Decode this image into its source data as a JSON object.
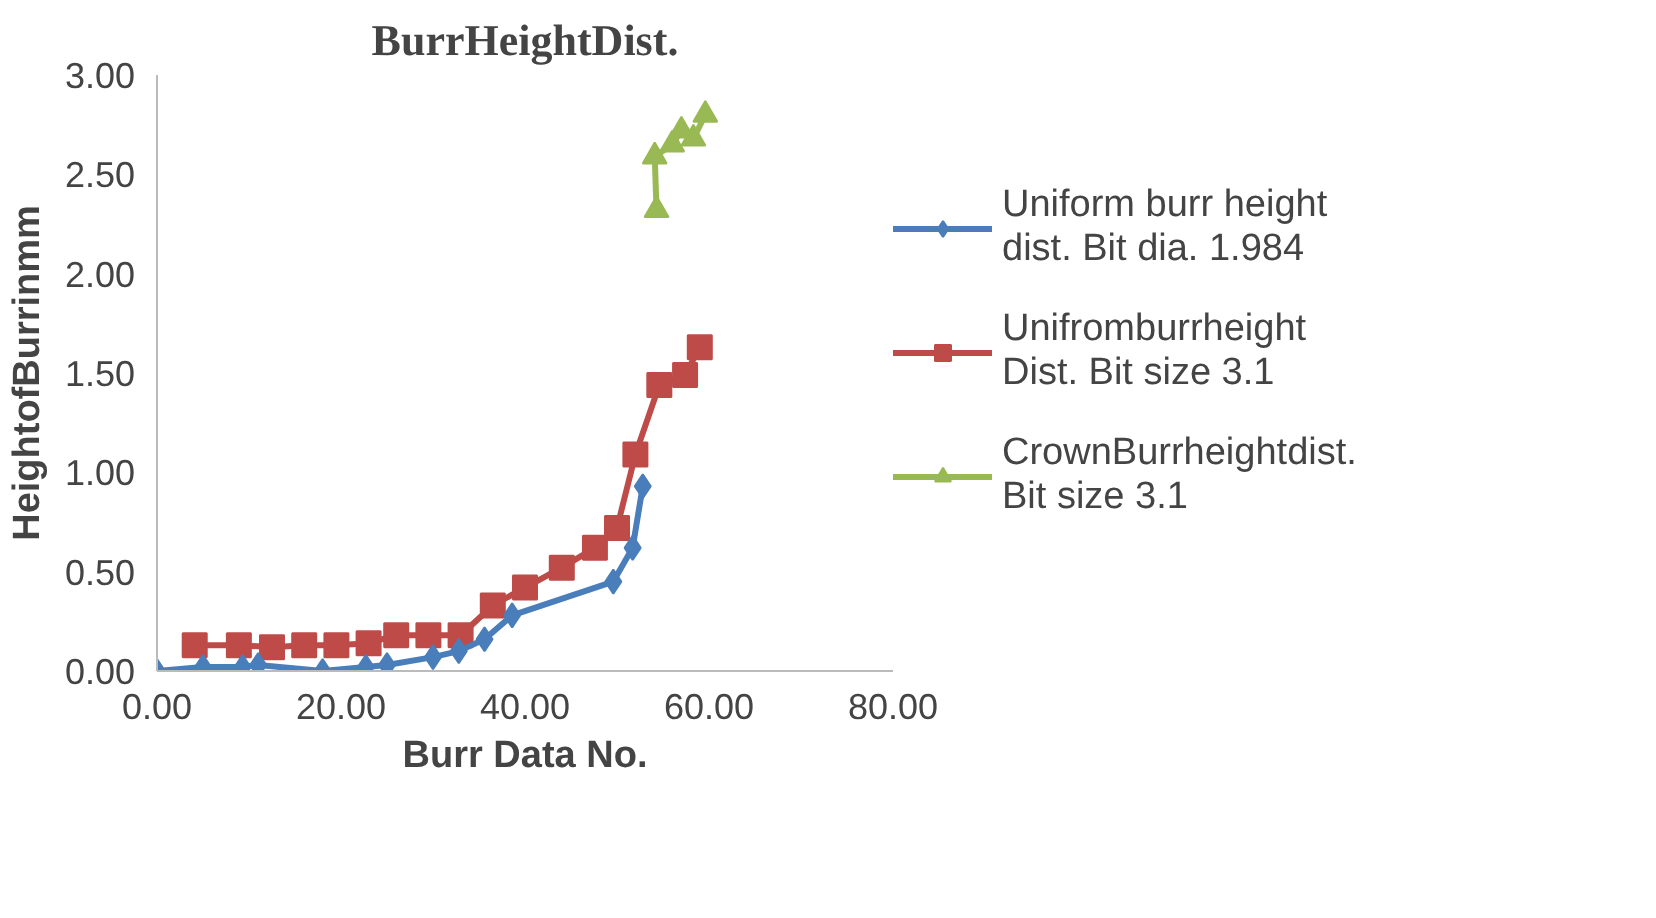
{
  "chart_data": {
    "type": "line",
    "title": "BurrHeightDist.",
    "xlabel": "Burr Data No.",
    "ylabel": "HeightofBurrinmm",
    "xlim": [
      0,
      80
    ],
    "xticks": [
      {
        "value": 0,
        "label": "0.00"
      },
      {
        "value": 20,
        "label": "20.00"
      },
      {
        "value": 40,
        "label": "40.00"
      },
      {
        "value": 60,
        "label": "60.00"
      },
      {
        "value": 80,
        "label": "80.00"
      }
    ],
    "ylim": [
      0,
      3
    ],
    "yticks": [
      {
        "value": 0,
        "label": "0.00"
      },
      {
        "value": 0.5,
        "label": "0.50"
      },
      {
        "value": 1,
        "label": "1.00"
      },
      {
        "value": 1.5,
        "label": "1.50"
      },
      {
        "value": 2,
        "label": "2.00"
      },
      {
        "value": 2.5,
        "label": "2.50"
      },
      {
        "value": 3,
        "label": "3.00"
      }
    ],
    "grid": false,
    "legend": "right",
    "line_style": "solid",
    "series": [
      {
        "name": "Uniform burr height dist. Bit dia. 1.984",
        "color": "#4a7ebb",
        "marker": "diamond",
        "x": [
          0,
          5,
          9.3,
          11,
          18,
          22.7,
          25,
          30,
          32.8,
          35.6,
          38.6,
          49.6,
          51.7,
          52.8
        ],
        "values": [
          0,
          0.02,
          0.02,
          0.03,
          0,
          0.02,
          0.03,
          0.07,
          0.1,
          0.16,
          0.28,
          0.45,
          0.62,
          0.93
        ]
      },
      {
        "name": "Unifromburrheight Dist. Bit size 3.1",
        "color": "#be4b48",
        "marker": "square",
        "x": [
          4.1,
          8.9,
          12.5,
          16,
          19.5,
          23,
          26,
          29.5,
          33,
          36.5,
          40,
          44,
          47.6,
          50,
          52,
          54.6,
          57.4,
          59
        ],
        "values": [
          0.13,
          0.13,
          0.12,
          0.13,
          0.13,
          0.14,
          0.18,
          0.18,
          0.18,
          0.33,
          0.42,
          0.52,
          0.62,
          0.72,
          1.09,
          1.44,
          1.49,
          1.63
        ]
      },
      {
        "name": "CrownBurrheightdist. Bit size 3.1",
        "color": "#98b954",
        "marker": "triangle",
        "x": [
          54.3,
          54.1,
          56,
          57,
          58.3,
          59.6
        ],
        "values": [
          2.32,
          2.59,
          2.65,
          2.72,
          2.68,
          2.8
        ]
      }
    ]
  }
}
